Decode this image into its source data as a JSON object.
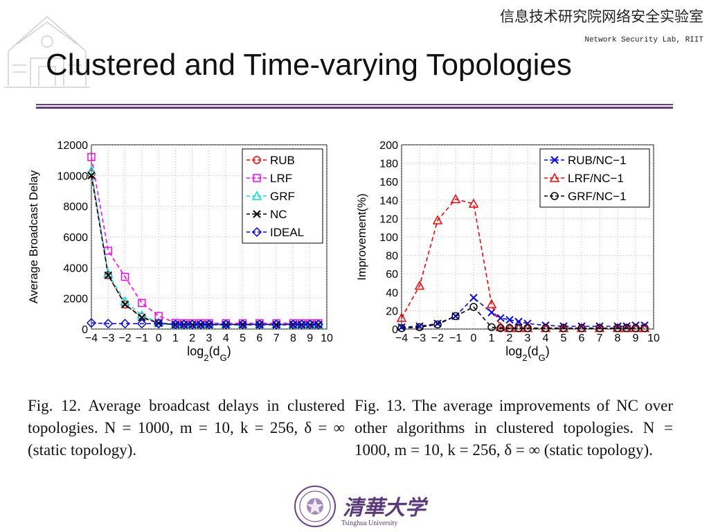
{
  "header": {
    "lab_name_cn": "信息技术研究院网络安全实验室",
    "lab_name_en": "Network Security Lab, RIIT"
  },
  "slide_title": "Clustered and Time-varying Topologies",
  "captions": {
    "left": "Fig. 12. Average broadcast delays in clustered topologies. N = 1000, m = 10, k = 256, δ = ∞ (static topology).",
    "right": "Fig. 13. The average improvements of NC over other algorithms in clustered topologies. N = 1000, m = 10, k = 256, δ = ∞ (static topology)."
  },
  "footer": {
    "university_cn": "清華大学",
    "university_en": "Tsinghua University"
  },
  "colors": {
    "rule": "#6a3b87",
    "red": "#ff0000",
    "magenta": "#ff00ff",
    "cyan": "#00e0e0",
    "black": "#000000",
    "blue": "#0000ff"
  },
  "chart_data": [
    {
      "type": "line",
      "xlabel": "log2(dG)",
      "ylabel": "Average Broadcast Delay",
      "xlim": [
        -4,
        10
      ],
      "ylim": [
        0,
        12000
      ],
      "xticks": [
        -4,
        -3,
        -2,
        -1,
        0,
        1,
        2,
        3,
        4,
        5,
        6,
        7,
        8,
        9,
        10
      ],
      "yticks": [
        0,
        2000,
        4000,
        6000,
        8000,
        10000,
        12000
      ],
      "grid": true,
      "legend": "top-right",
      "series": [
        {
          "name": "RUB",
          "color": "#ff0000",
          "marker": "circle",
          "x": [
            -4,
            -3,
            -2,
            -1,
            0,
            1,
            1.5,
            2,
            2.5,
            3,
            4,
            5,
            6,
            7,
            8,
            8.5,
            9,
            9.5
          ],
          "y": [
            10100,
            3500,
            1600,
            800,
            400,
            300,
            300,
            300,
            300,
            300,
            300,
            300,
            300,
            300,
            300,
            300,
            300,
            300
          ]
        },
        {
          "name": "LRF",
          "color": "#ff00ff",
          "marker": "square",
          "x": [
            -4,
            -3,
            -2,
            -1,
            0,
            1,
            1.5,
            2,
            2.5,
            3,
            4,
            5,
            6,
            7,
            8,
            8.5,
            9,
            9.5
          ],
          "y": [
            11200,
            5100,
            3400,
            1700,
            850,
            400,
            380,
            380,
            380,
            380,
            380,
            380,
            380,
            380,
            380,
            380,
            380,
            380
          ]
        },
        {
          "name": "GRF",
          "color": "#00e0e0",
          "marker": "triangle",
          "x": [
            -4,
            -3,
            -2,
            -1,
            0,
            1,
            1.5,
            2,
            2.5,
            3,
            4,
            5,
            6,
            7,
            8,
            8.5,
            9,
            9.5
          ],
          "y": [
            10300,
            3600,
            1800,
            900,
            420,
            320,
            320,
            320,
            320,
            320,
            320,
            320,
            320,
            320,
            320,
            320,
            320,
            320
          ]
        },
        {
          "name": "NC",
          "color": "#000000",
          "marker": "x",
          "x": [
            -4,
            -3,
            -2,
            -1,
            0,
            1,
            1.5,
            2,
            2.5,
            3,
            4,
            5,
            6,
            7,
            8,
            8.5,
            9,
            9.5
          ],
          "y": [
            10000,
            3500,
            1600,
            750,
            380,
            280,
            280,
            280,
            280,
            280,
            280,
            280,
            280,
            280,
            280,
            280,
            280,
            280
          ]
        },
        {
          "name": "IDEAL",
          "color": "#0000ff",
          "marker": "diamond",
          "x": [
            -4,
            -3,
            -2,
            -1,
            0,
            1,
            1.5,
            2,
            2.5,
            3,
            4,
            5,
            6,
            7,
            8,
            8.5,
            9,
            9.5
          ],
          "y": [
            400,
            350,
            350,
            350,
            350,
            300,
            300,
            300,
            300,
            300,
            300,
            300,
            300,
            300,
            300,
            300,
            300,
            300
          ]
        }
      ]
    },
    {
      "type": "line",
      "xlabel": "log2(dG)",
      "ylabel": "Improvement(%)",
      "xlim": [
        -4,
        10
      ],
      "ylim": [
        0,
        200
      ],
      "xticks": [
        -4,
        -3,
        -2,
        -1,
        0,
        1,
        2,
        3,
        4,
        5,
        6,
        7,
        8,
        9,
        10
      ],
      "yticks": [
        0,
        20,
        40,
        60,
        80,
        100,
        120,
        140,
        160,
        180,
        200
      ],
      "grid": true,
      "legend": "top-right",
      "series": [
        {
          "name": "RUB/NC−1",
          "color": "#0000ff",
          "marker": "x",
          "x": [
            -4,
            -3,
            -2,
            -1,
            0,
            1,
            1.5,
            2,
            2.5,
            3,
            4,
            5,
            6,
            7,
            8,
            8.5,
            9,
            9.5
          ],
          "y": [
            2,
            3,
            6,
            14,
            34,
            18,
            12,
            10,
            8,
            6,
            4,
            3,
            3,
            3,
            3,
            3,
            4,
            4
          ]
        },
        {
          "name": "LRF/NC−1",
          "color": "#ff0000",
          "marker": "triangle",
          "x": [
            -4,
            -3,
            -2,
            -1,
            0,
            1,
            1.5,
            2,
            2.5,
            3,
            4,
            5,
            6,
            7,
            8,
            8.5,
            9,
            9.5
          ],
          "y": [
            12,
            47,
            118,
            141,
            136,
            27,
            2,
            1,
            1,
            1,
            1,
            1,
            1,
            1,
            1,
            1,
            1,
            1
          ]
        },
        {
          "name": "GRF/NC−1",
          "color": "#000000",
          "marker": "circle",
          "x": [
            -4,
            -3,
            -2,
            -1,
            0,
            1,
            1.5,
            2,
            2.5,
            3,
            4,
            5,
            6,
            7,
            8,
            8.5,
            9,
            9.5
          ],
          "y": [
            1,
            2,
            5,
            14,
            24,
            2,
            1,
            1,
            1,
            1,
            1,
            1,
            1,
            1,
            1,
            1,
            1,
            1
          ]
        }
      ]
    }
  ]
}
